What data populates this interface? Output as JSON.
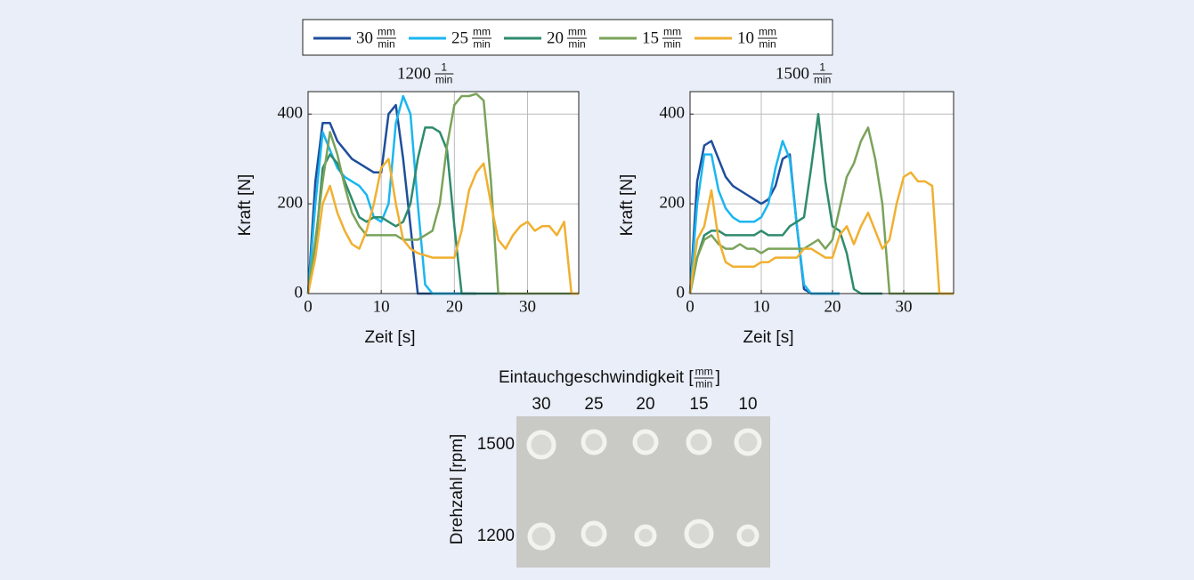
{
  "chart_data": [
    {
      "type": "line",
      "title": "1200",
      "title_unit": {
        "numerator": "1",
        "denominator": "min"
      },
      "xlabel": "Zeit [s]",
      "ylabel": "Kraft [N]",
      "xlim": [
        0,
        37
      ],
      "ylim": [
        0,
        450
      ],
      "xticks": [
        0,
        10,
        20,
        30
      ],
      "yticks": [
        0,
        200,
        400
      ],
      "grid": true,
      "legend_unit": {
        "numerator": "mm",
        "denominator": "min"
      },
      "x": [
        0,
        1,
        2,
        3,
        4,
        5,
        6,
        7,
        8,
        9,
        10,
        11,
        12,
        13,
        14,
        15,
        16,
        17,
        18,
        19,
        20,
        21,
        22,
        23,
        24,
        25,
        26,
        27,
        28,
        29,
        30,
        31,
        32,
        33,
        34,
        35,
        36,
        37
      ],
      "series": [
        {
          "name": "30",
          "color": "#1f4e9c",
          "values": [
            0,
            250,
            380,
            380,
            340,
            320,
            300,
            290,
            280,
            270,
            270,
            400,
            420,
            300,
            150,
            0,
            0,
            0,
            0,
            0,
            0,
            0,
            0,
            0,
            null,
            null,
            null,
            null,
            null,
            null,
            null,
            null,
            null,
            null,
            null,
            null,
            null,
            null
          ]
        },
        {
          "name": "25",
          "color": "#1ab6f0",
          "values": [
            0,
            200,
            360,
            320,
            280,
            260,
            250,
            240,
            220,
            170,
            160,
            200,
            380,
            440,
            400,
            200,
            20,
            0,
            0,
            0,
            0,
            0,
            0,
            0,
            null,
            null,
            null,
            null,
            null,
            null,
            null,
            null,
            null,
            null,
            null,
            null,
            null,
            null
          ]
        },
        {
          "name": "20",
          "color": "#2e8b6e",
          "values": [
            0,
            100,
            280,
            310,
            290,
            250,
            210,
            170,
            160,
            170,
            170,
            160,
            150,
            160,
            200,
            300,
            370,
            370,
            360,
            320,
            150,
            0,
            0,
            0,
            0,
            0,
            0,
            0,
            null,
            null,
            null,
            null,
            null,
            null,
            null,
            null,
            null,
            null
          ]
        },
        {
          "name": "15",
          "color": "#7aa35a",
          "values": [
            0,
            120,
            250,
            360,
            310,
            240,
            180,
            150,
            130,
            130,
            130,
            130,
            130,
            120,
            120,
            120,
            130,
            140,
            200,
            330,
            420,
            440,
            440,
            445,
            430,
            250,
            0,
            0,
            0,
            0,
            0,
            0,
            0,
            0,
            0,
            0,
            0,
            0
          ]
        },
        {
          "name": "10",
          "color": "#f0b030",
          "values": [
            0,
            80,
            200,
            240,
            180,
            140,
            110,
            100,
            140,
            200,
            280,
            300,
            200,
            120,
            100,
            90,
            85,
            80,
            80,
            80,
            80,
            140,
            230,
            270,
            290,
            200,
            120,
            100,
            130,
            150,
            160,
            140,
            150,
            150,
            130,
            160,
            0,
            0
          ]
        }
      ]
    },
    {
      "type": "line",
      "title": "1500",
      "title_unit": {
        "numerator": "1",
        "denominator": "min"
      },
      "xlabel": "Zeit [s]",
      "ylabel": "Kraft [N]",
      "xlim": [
        0,
        37
      ],
      "ylim": [
        0,
        450
      ],
      "xticks": [
        0,
        10,
        20,
        30
      ],
      "yticks": [
        0,
        200,
        400
      ],
      "grid": true,
      "x": [
        0,
        1,
        2,
        3,
        4,
        5,
        6,
        7,
        8,
        9,
        10,
        11,
        12,
        13,
        14,
        15,
        16,
        17,
        18,
        19,
        20,
        21,
        22,
        23,
        24,
        25,
        26,
        27,
        28,
        29,
        30,
        31,
        32,
        33,
        34,
        35,
        36,
        37
      ],
      "series": [
        {
          "name": "30",
          "color": "#1f4e9c",
          "values": [
            0,
            250,
            330,
            340,
            300,
            260,
            240,
            230,
            220,
            210,
            200,
            210,
            240,
            300,
            310,
            150,
            10,
            0,
            0,
            0,
            0,
            0,
            null,
            null,
            null,
            null,
            null,
            null,
            null,
            null,
            null,
            null,
            null,
            null,
            null,
            null,
            null,
            null
          ]
        },
        {
          "name": "25",
          "color": "#1ab6f0",
          "values": [
            0,
            200,
            310,
            310,
            230,
            190,
            170,
            160,
            160,
            160,
            170,
            200,
            280,
            340,
            300,
            150,
            20,
            0,
            0,
            0,
            0,
            0,
            null,
            null,
            null,
            null,
            null,
            null,
            null,
            null,
            null,
            null,
            null,
            null,
            null,
            null,
            null,
            null
          ]
        },
        {
          "name": "20",
          "color": "#2e8b6e",
          "values": [
            0,
            80,
            130,
            140,
            140,
            130,
            130,
            130,
            130,
            130,
            140,
            130,
            130,
            130,
            150,
            160,
            170,
            280,
            400,
            250,
            150,
            140,
            90,
            10,
            0,
            0,
            0,
            0,
            null,
            null,
            null,
            null,
            null,
            null,
            null,
            null,
            null,
            null
          ]
        },
        {
          "name": "15",
          "color": "#7aa35a",
          "values": [
            0,
            80,
            120,
            130,
            110,
            100,
            100,
            110,
            100,
            100,
            90,
            100,
            100,
            100,
            100,
            100,
            100,
            110,
            120,
            100,
            120,
            190,
            260,
            290,
            340,
            370,
            300,
            200,
            0,
            0,
            0,
            0,
            0,
            0,
            0,
            0,
            0,
            0
          ]
        },
        {
          "name": "10",
          "color": "#f0b030",
          "values": [
            0,
            120,
            150,
            230,
            120,
            70,
            60,
            60,
            60,
            60,
            70,
            70,
            80,
            80,
            80,
            80,
            100,
            100,
            90,
            80,
            80,
            130,
            150,
            110,
            150,
            180,
            140,
            100,
            120,
            200,
            260,
            270,
            250,
            250,
            240,
            0,
            0,
            0
          ]
        }
      ]
    }
  ],
  "photo": {
    "title_prefix": "Eintauchgeschwindigkeit [",
    "title_unit": {
      "numerator": "mm",
      "denominator": "min"
    },
    "title_suffix": "]",
    "columns": [
      "30",
      "25",
      "20",
      "15",
      "10"
    ],
    "rows": [
      "1500",
      "1200"
    ],
    "ylabel": "Drehzahl [rpm]"
  }
}
